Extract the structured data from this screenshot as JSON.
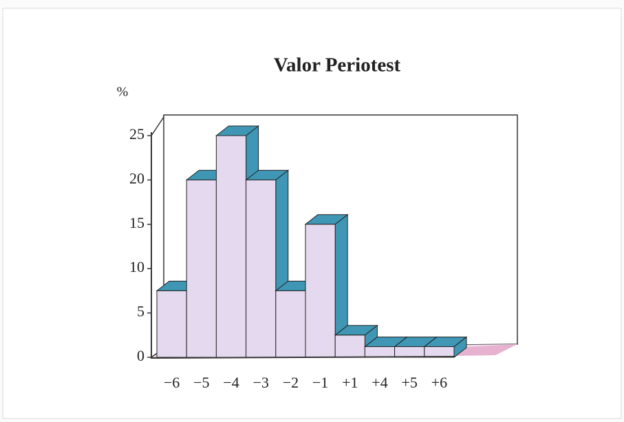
{
  "chart_data": {
    "type": "bar3d",
    "title": "Valor Periotest",
    "y_label": "%",
    "categories": [
      "−6",
      "−5",
      "−4",
      "−3",
      "−2",
      "−1",
      "+1",
      "+4",
      "+5",
      "+6"
    ],
    "values": [
      7.5,
      20,
      25,
      20,
      7.5,
      15,
      2.5,
      1.2,
      1.2,
      1.2
    ],
    "color": "#e4d9ee",
    "side_color": "#3f97b5",
    "ylim": [
      0,
      25
    ],
    "yticks": [
      0,
      5,
      10,
      15,
      20,
      25
    ]
  }
}
